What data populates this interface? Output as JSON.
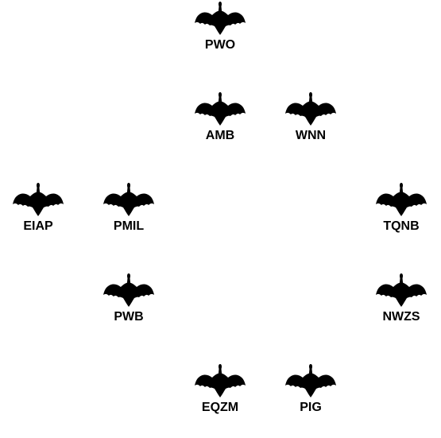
{
  "colors": {
    "background": "#ffffff",
    "icon": "#000000",
    "label": "#000000"
  },
  "icon_name": "bird-icon",
  "birds": [
    {
      "id": "pwo",
      "label": "PWO"
    },
    {
      "id": "amb",
      "label": "AMB"
    },
    {
      "id": "wnn",
      "label": "WNN"
    },
    {
      "id": "eiap",
      "label": "EIAP"
    },
    {
      "id": "pmil",
      "label": "PMIL"
    },
    {
      "id": "tqnb",
      "label": "TQNB"
    },
    {
      "id": "pwb",
      "label": "PWB"
    },
    {
      "id": "nwzs",
      "label": "NWZS"
    },
    {
      "id": "eqzm",
      "label": "EQZM"
    },
    {
      "id": "pig",
      "label": "PIG"
    }
  ]
}
